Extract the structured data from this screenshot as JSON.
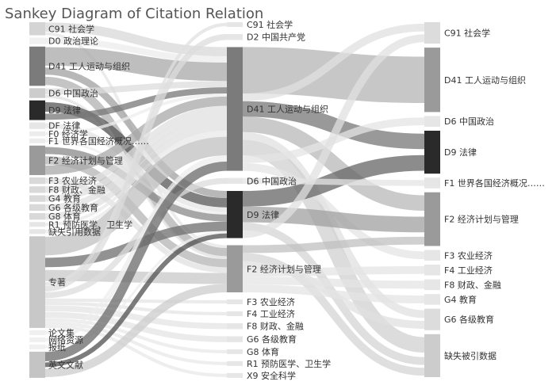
{
  "chart_data": {
    "type": "sankey",
    "title": "Sankey Diagram of Citation Relation",
    "columns": [
      [
        {
          "id": "L_C91",
          "label": "C91 社会学",
          "value": 2,
          "color": "#d4d4d4"
        },
        {
          "id": "L_D0",
          "label": "D0 政治理论",
          "value": 1,
          "color": "#f1f1f1"
        },
        {
          "id": "L_D41",
          "label": "D41 工人运动与组织",
          "value": 6,
          "color": "#7b7b7b"
        },
        {
          "id": "L_D6",
          "label": "D6 中国政治",
          "value": 1.5,
          "color": "#cccccc"
        },
        {
          "id": "L_D9",
          "label": "D9 法律",
          "value": 3,
          "color": "#2a2a2a"
        },
        {
          "id": "L_DF",
          "label": "DF 法律",
          "value": 1,
          "color": "#e6e6e6"
        },
        {
          "id": "L_F0",
          "label": "F0 经济学",
          "value": 0.5,
          "color": "#ececec"
        },
        {
          "id": "L_F1",
          "label": "F1 世界各国经济概况……",
          "value": 0.5,
          "color": "#ececec"
        },
        {
          "id": "L_F2",
          "label": "F2 经济计划与管理",
          "value": 4.5,
          "color": "#9a9a9a"
        },
        {
          "id": "L_F3",
          "label": "F3 农业经济",
          "value": 1,
          "color": "#d9d9d9"
        },
        {
          "id": "L_F8",
          "label": "F8 财政、金融",
          "value": 1,
          "color": "#d9d9d9"
        },
        {
          "id": "L_G4",
          "label": "G4 教育",
          "value": 1,
          "color": "#d9d9d9"
        },
        {
          "id": "L_G6",
          "label": "G6 各级教育",
          "value": 1,
          "color": "#d9d9d9"
        },
        {
          "id": "L_G8",
          "label": "G8 体育",
          "value": 1,
          "color": "#d9d9d9"
        },
        {
          "id": "L_R1",
          "label": "R1 预防医学、卫生学",
          "value": 0.5,
          "color": "#e6e6e6"
        },
        {
          "id": "L_MISS",
          "label": "缺失引用数据",
          "value": 0.5,
          "color": "#e6e6e6"
        },
        {
          "id": "L_BOOK",
          "label": "专著",
          "value": 14,
          "color": "#c8c8c8"
        },
        {
          "id": "L_PROC",
          "label": "论文集",
          "value": 0.5,
          "color": "#f0f0f0"
        },
        {
          "id": "L_WEB",
          "label": "网络资源",
          "value": 0.5,
          "color": "#f0f0f0"
        },
        {
          "id": "L_NEWS",
          "label": "报纸",
          "value": 0.5,
          "color": "#f0f0f0"
        },
        {
          "id": "L_ENG",
          "label": "英文文献",
          "value": 4,
          "color": "#c4c4c4"
        }
      ],
      [
        {
          "id": "M_C91",
          "label": "C91 社会学",
          "value": 0.5,
          "color": "#e6e6e6"
        },
        {
          "id": "M_D2",
          "label": "D2 中国共产党",
          "value": 1,
          "color": "#e6e6e6"
        },
        {
          "id": "M_D41",
          "label": "D41 工人运动与组织",
          "value": 21,
          "color": "#7b7b7b"
        },
        {
          "id": "M_D6",
          "label": "D6 中国政治",
          "value": 1,
          "color": "#e6e6e6"
        },
        {
          "id": "M_D9",
          "label": "D9 法律",
          "value": 8,
          "color": "#2a2a2a"
        },
        {
          "id": "M_F2",
          "label": "F2 经济计划与管理",
          "value": 8,
          "color": "#9a9a9a"
        },
        {
          "id": "M_F3",
          "label": "F3 农业经济",
          "value": 0.5,
          "color": "#e6e6e6"
        },
        {
          "id": "M_F4",
          "label": "F4 工业经济",
          "value": 0.5,
          "color": "#e6e6e6"
        },
        {
          "id": "M_F8",
          "label": "F8 财政、金融",
          "value": 1,
          "color": "#e6e6e6"
        },
        {
          "id": "M_G6",
          "label": "G6 各级教育",
          "value": 1,
          "color": "#e6e6e6"
        },
        {
          "id": "M_G8",
          "label": "G8 体育",
          "value": 0.5,
          "color": "#e6e6e6"
        },
        {
          "id": "M_R1",
          "label": "R1 预防医学、卫生学",
          "value": 0.5,
          "color": "#e6e6e6"
        },
        {
          "id": "M_X9",
          "label": "X9 安全科学",
          "value": 0.5,
          "color": "#e6e6e6"
        }
      ],
      [
        {
          "id": "R_C91",
          "label": "C91 社会学",
          "value": 1,
          "color": "#dcdcdc"
        },
        {
          "id": "R_D41",
          "label": "D41 工人运动与组织",
          "value": 3,
          "color": "#9a9a9a"
        },
        {
          "id": "R_D6",
          "label": "D6 中国政治",
          "value": 0.5,
          "color": "#e6e6e6"
        },
        {
          "id": "R_D9",
          "label": "D9 法律",
          "value": 2,
          "color": "#2a2a2a"
        },
        {
          "id": "R_F1",
          "label": "F1 世界各国经济概况……",
          "value": 0.5,
          "color": "#e6e6e6"
        },
        {
          "id": "R_F2",
          "label": "F2 经济计划与管理",
          "value": 2.5,
          "color": "#9a9a9a"
        },
        {
          "id": "R_F3",
          "label": "F3 农业经济",
          "value": 0.5,
          "color": "#e6e6e6"
        },
        {
          "id": "R_F4",
          "label": "F4 工业经济",
          "value": 0.5,
          "color": "#e6e6e6"
        },
        {
          "id": "R_F8",
          "label": "F8 财政、金融",
          "value": 0.5,
          "color": "#e6e6e6"
        },
        {
          "id": "R_G4",
          "label": "G4 教育",
          "value": 0.5,
          "color": "#e6e6e6"
        },
        {
          "id": "R_G6",
          "label": "G6 各级教育",
          "value": 1,
          "color": "#dcdcdc"
        },
        {
          "id": "R_MISS",
          "label": "缺失被引数据",
          "value": 2,
          "color": "#cccccc"
        }
      ]
    ],
    "links": [
      {
        "source": "L_C91",
        "target": "M_D41",
        "value": 1.5,
        "color": "#d8d8d8"
      },
      {
        "source": "L_C91",
        "target": "M_F2",
        "value": 0.5,
        "color": "#e4e4e4"
      },
      {
        "source": "L_D0",
        "target": "M_D41",
        "value": 1,
        "color": "#ececec"
      },
      {
        "source": "L_D41",
        "target": "M_D41",
        "value": 3,
        "color": "#a8a8a8"
      },
      {
        "source": "L_D41",
        "target": "M_D9",
        "value": 1.5,
        "color": "#a0a0a0"
      },
      {
        "source": "L_D41",
        "target": "M_F2",
        "value": 1.5,
        "color": "#b0b0b0"
      },
      {
        "source": "L_D6",
        "target": "M_D41",
        "value": 1,
        "color": "#dcdcdc"
      },
      {
        "source": "L_D6",
        "target": "M_F2",
        "value": 0.5,
        "color": "#e0e0e0"
      },
      {
        "source": "L_D9",
        "target": "M_D9",
        "value": 2,
        "color": "#555555"
      },
      {
        "source": "L_D9",
        "target": "M_D41",
        "value": 1,
        "color": "#777777"
      },
      {
        "source": "L_DF",
        "target": "M_D9",
        "value": 1,
        "color": "#e4e4e4"
      },
      {
        "source": "L_F0",
        "target": "M_D41",
        "value": 0.5,
        "color": "#eeeeee"
      },
      {
        "source": "L_F1",
        "target": "M_D9",
        "value": 0.5,
        "color": "#eeeeee"
      },
      {
        "source": "L_F2",
        "target": "M_D9",
        "value": 1.5,
        "color": "#8a8a8a"
      },
      {
        "source": "L_F2",
        "target": "M_F2",
        "value": 1.5,
        "color": "#b4b4b4"
      },
      {
        "source": "L_F2",
        "target": "M_D41",
        "value": 1.5,
        "color": "#a8a8a8"
      },
      {
        "source": "L_F3",
        "target": "M_F2",
        "value": 1,
        "color": "#e0e0e0"
      },
      {
        "source": "L_F8",
        "target": "M_D41",
        "value": 1,
        "color": "#e0e0e0"
      },
      {
        "source": "L_G4",
        "target": "M_D41",
        "value": 1,
        "color": "#e0e0e0"
      },
      {
        "source": "L_G6",
        "target": "M_D41",
        "value": 1,
        "color": "#e0e0e0"
      },
      {
        "source": "L_G8",
        "target": "M_D41",
        "value": 1,
        "color": "#e0e0e0"
      },
      {
        "source": "L_R1",
        "target": "M_D41",
        "value": 0.5,
        "color": "#e8e8e8"
      },
      {
        "source": "L_MISS",
        "target": "M_D41",
        "value": 0.5,
        "color": "#e8e8e8"
      },
      {
        "source": "L_BOOK",
        "target": "M_D41",
        "value": 3,
        "color": "#c0c0c0"
      },
      {
        "source": "L_BOOK",
        "target": "M_D9",
        "value": 2,
        "color": "#6e6e6e"
      },
      {
        "source": "L_BOOK",
        "target": "M_F2",
        "value": 2,
        "color": "#c8c8c8"
      },
      {
        "source": "L_BOOK",
        "target": "M_C91",
        "value": 0.5,
        "color": "#e0e0e0"
      },
      {
        "source": "L_BOOK",
        "target": "M_D2",
        "value": 1,
        "color": "#dcdcdc"
      },
      {
        "source": "L_BOOK",
        "target": "M_D6",
        "value": 1,
        "color": "#dcdcdc"
      },
      {
        "source": "L_BOOK",
        "target": "M_F3",
        "value": 0.5,
        "color": "#e4e4e4"
      },
      {
        "source": "L_BOOK",
        "target": "M_F4",
        "value": 0.5,
        "color": "#e4e4e4"
      },
      {
        "source": "L_BOOK",
        "target": "M_F8",
        "value": 1,
        "color": "#e4e4e4"
      },
      {
        "source": "L_BOOK",
        "target": "M_G6",
        "value": 1,
        "color": "#e4e4e4"
      },
      {
        "source": "L_BOOK",
        "target": "M_G8",
        "value": 0.5,
        "color": "#e8e8e8"
      },
      {
        "source": "L_BOOK",
        "target": "M_R1",
        "value": 0.5,
        "color": "#e8e8e8"
      },
      {
        "source": "L_BOOK",
        "target": "M_X9",
        "value": 0.5,
        "color": "#e8e8e8"
      },
      {
        "source": "L_PROC",
        "target": "M_D41",
        "value": 0.5,
        "color": "#eeeeee"
      },
      {
        "source": "L_WEB",
        "target": "M_D41",
        "value": 0.5,
        "color": "#eeeeee"
      },
      {
        "source": "L_NEWS",
        "target": "M_D9",
        "value": 0.5,
        "color": "#eeeeee"
      },
      {
        "source": "L_ENG",
        "target": "M_D41",
        "value": 1.5,
        "color": "#6a6a6a"
      },
      {
        "source": "L_ENG",
        "target": "M_D9",
        "value": 1,
        "color": "#505050"
      },
      {
        "source": "L_ENG",
        "target": "M_F2",
        "value": 1.5,
        "color": "#cccccc"
      },
      {
        "source": "M_D41",
        "target": "R_D41",
        "value": 3,
        "color": "#b4b4b4"
      },
      {
        "source": "M_D41",
        "target": "R_C91",
        "value": 0.5,
        "color": "#e0e0e0"
      },
      {
        "source": "M_D41",
        "target": "R_D9",
        "value": 1,
        "color": "#777777"
      },
      {
        "source": "M_D41",
        "target": "R_F2",
        "value": 1,
        "color": "#b8b8b8"
      },
      {
        "source": "M_D41",
        "target": "R_G6",
        "value": 0.5,
        "color": "#e0e0e0"
      },
      {
        "source": "M_D41",
        "target": "R_MISS",
        "value": 1,
        "color": "#d0d0d0"
      },
      {
        "source": "M_D41",
        "target": "R_D6",
        "value": 0.5,
        "color": "#e4e4e4"
      },
      {
        "source": "M_D41",
        "target": "R_F3",
        "value": 0.5,
        "color": "#e4e4e4"
      },
      {
        "source": "M_D9",
        "target": "R_D9",
        "value": 1,
        "color": "#666666"
      },
      {
        "source": "M_D9",
        "target": "R_F2",
        "value": 1,
        "color": "#a0a0a0"
      },
      {
        "source": "M_D9",
        "target": "R_MISS",
        "value": 0.5,
        "color": "#d4d4d4"
      },
      {
        "source": "M_D9",
        "target": "R_C91",
        "value": 0.5,
        "color": "#e0e0e0"
      },
      {
        "source": "M_F2",
        "target": "R_F2",
        "value": 0.5,
        "color": "#c0c0c0"
      },
      {
        "source": "M_F2",
        "target": "R_MISS",
        "value": 0.5,
        "color": "#d4d4d4"
      },
      {
        "source": "M_F2",
        "target": "R_G6",
        "value": 0.5,
        "color": "#e0e0e0"
      },
      {
        "source": "M_F2",
        "target": "R_F4",
        "value": 0.5,
        "color": "#e4e4e4"
      },
      {
        "source": "M_F2",
        "target": "R_F8",
        "value": 0.5,
        "color": "#e4e4e4"
      },
      {
        "source": "M_F2",
        "target": "R_G4",
        "value": 0.5,
        "color": "#e4e4e4"
      },
      {
        "source": "M_D6",
        "target": "R_F1",
        "value": 0.5,
        "color": "#e4e4e4"
      }
    ]
  }
}
